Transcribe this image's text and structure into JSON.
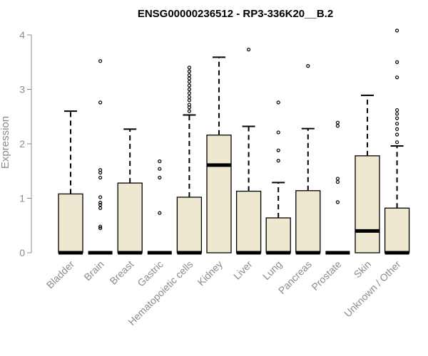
{
  "chart_data": {
    "type": "boxplot",
    "title": "ENSG00000236512 - RP3-336K20__B.2",
    "ylabel": "Expression",
    "xlabel": "",
    "ylim": [
      0,
      4.1
    ],
    "yticks": [
      0,
      1,
      2,
      3,
      4
    ],
    "box_fill": "#efe8d0",
    "categories": [
      "Bladder",
      "Brain",
      "Breast",
      "Gastric",
      "Hematopoietic cells",
      "Kidney",
      "Liver",
      "Lung",
      "Pancreas",
      "Prostate",
      "Skin",
      "Unknown / Other"
    ],
    "boxes": [
      {
        "q1": 0,
        "median": 0,
        "q3": 1.08,
        "whisker_low": 0,
        "whisker_high": 2.6,
        "outliers": []
      },
      {
        "q1": 0,
        "median": 0,
        "q3": 0,
        "whisker_low": 0,
        "whisker_high": 0,
        "outliers": [
          0.45,
          0.48,
          0.82,
          0.88,
          0.92,
          1.02,
          1.38,
          1.47,
          1.52,
          2.76,
          3.52
        ]
      },
      {
        "q1": 0,
        "median": 0,
        "q3": 1.28,
        "whisker_low": 0,
        "whisker_high": 2.27,
        "outliers": []
      },
      {
        "q1": 0,
        "median": 0,
        "q3": 0,
        "whisker_low": 0,
        "whisker_high": 0,
        "outliers": [
          0.73,
          1.38,
          1.54,
          1.68
        ]
      },
      {
        "q1": 0,
        "median": 0,
        "q3": 1.02,
        "whisker_low": 0,
        "whisker_high": 2.53,
        "outliers": [
          2.6,
          2.67,
          2.72,
          2.8,
          2.86,
          2.93,
          3.0,
          3.07,
          3.14,
          3.2,
          3.26,
          3.33,
          3.4
        ]
      },
      {
        "q1": 0,
        "median": 1.61,
        "q3": 2.16,
        "whisker_low": 0,
        "whisker_high": 3.59,
        "outliers": []
      },
      {
        "q1": 0,
        "median": 0,
        "q3": 1.13,
        "whisker_low": 0,
        "whisker_high": 2.32,
        "outliers": [
          3.73
        ]
      },
      {
        "q1": 0,
        "median": 0,
        "q3": 0.64,
        "whisker_low": 0,
        "whisker_high": 1.29,
        "outliers": [
          1.69,
          1.88,
          2.21,
          2.76
        ]
      },
      {
        "q1": 0,
        "median": 0,
        "q3": 1.14,
        "whisker_low": 0,
        "whisker_high": 2.28,
        "outliers": [
          3.43
        ]
      },
      {
        "q1": 0,
        "median": 0,
        "q3": 0,
        "whisker_low": 0,
        "whisker_high": 0,
        "outliers": [
          0.93,
          1.3,
          1.36,
          2.33,
          2.39
        ]
      },
      {
        "q1": 0,
        "median": 0.4,
        "q3": 1.78,
        "whisker_low": 0,
        "whisker_high": 2.89,
        "outliers": []
      },
      {
        "q1": 0,
        "median": 0,
        "q3": 0.82,
        "whisker_low": 0,
        "whisker_high": 1.96,
        "outliers": [
          2.03,
          2.17,
          2.27,
          2.37,
          2.47,
          2.55,
          2.62,
          3.22,
          3.5,
          4.08
        ]
      }
    ]
  }
}
